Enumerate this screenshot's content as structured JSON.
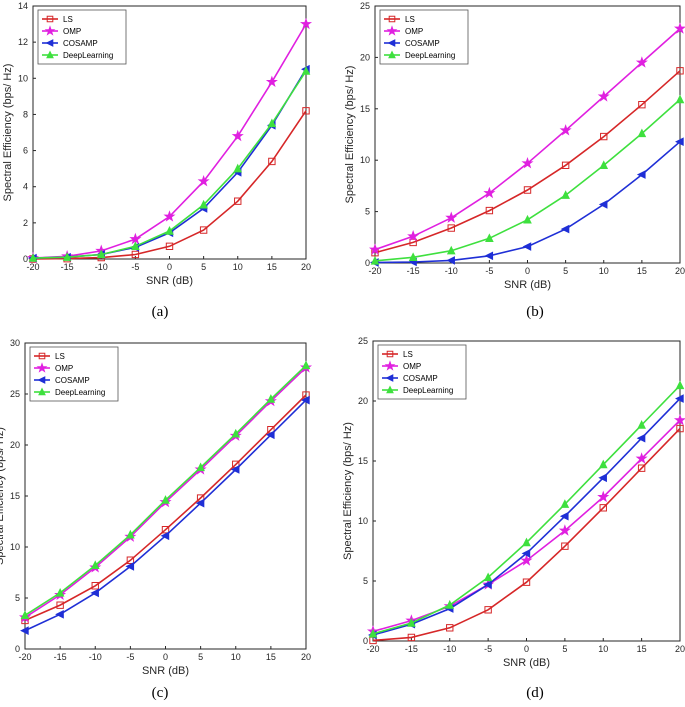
{
  "chart_data": [
    {
      "type": "line",
      "caption": "(a)",
      "xlabel": "SNR (dB)",
      "ylabel": "Spectral Efficiency (bps/ Hz)",
      "x": [
        -20,
        -15,
        -10,
        -5,
        0,
        5,
        10,
        15,
        20
      ],
      "xlim": [
        -20,
        20
      ],
      "ylim": [
        0,
        14
      ],
      "yticks": [
        0,
        2,
        4,
        6,
        8,
        10,
        12,
        14
      ],
      "legend_position": "top-left",
      "series": [
        {
          "name": "LS",
          "color": "#d62728",
          "marker": "square",
          "values": [
            0.0,
            0.02,
            0.08,
            0.25,
            0.7,
            1.6,
            3.2,
            5.4,
            8.2
          ]
        },
        {
          "name": "OMP",
          "color": "#e020e0",
          "marker": "star",
          "values": [
            0.05,
            0.15,
            0.45,
            1.1,
            2.35,
            4.3,
            6.8,
            9.8,
            13.0
          ]
        },
        {
          "name": "COSAMP",
          "color": "#1f2fd6",
          "marker": "triangle-left",
          "values": [
            0.05,
            0.1,
            0.25,
            0.65,
            1.45,
            2.8,
            4.8,
            7.4,
            10.5
          ]
        },
        {
          "name": "DeepLearning",
          "color": "#3ee03e",
          "marker": "triangle-up",
          "values": [
            0.05,
            0.1,
            0.25,
            0.7,
            1.55,
            3.0,
            5.0,
            7.5,
            10.4
          ]
        }
      ]
    },
    {
      "type": "line",
      "caption": "(b)",
      "xlabel": "SNR (dB)",
      "ylabel": "Spectral Efficiency (bps/ Hz)",
      "x": [
        -20,
        -15,
        -10,
        -5,
        0,
        5,
        10,
        15,
        20
      ],
      "xlim": [
        -20,
        20
      ],
      "ylim": [
        0,
        25
      ],
      "yticks": [
        0,
        5,
        10,
        15,
        20,
        25
      ],
      "legend_position": "top-left",
      "series": [
        {
          "name": "LS",
          "color": "#d62728",
          "marker": "square",
          "values": [
            1.0,
            2.0,
            3.4,
            5.1,
            7.1,
            9.5,
            12.3,
            15.4,
            18.7
          ]
        },
        {
          "name": "OMP",
          "color": "#e020e0",
          "marker": "star",
          "values": [
            1.3,
            2.6,
            4.4,
            6.8,
            9.7,
            12.9,
            16.2,
            19.5,
            22.8
          ]
        },
        {
          "name": "COSAMP",
          "color": "#1f2fd6",
          "marker": "triangle-left",
          "values": [
            0.05,
            0.1,
            0.25,
            0.7,
            1.6,
            3.3,
            5.7,
            8.6,
            11.8
          ]
        },
        {
          "name": "DeepLearning",
          "color": "#3ee03e",
          "marker": "triangle-up",
          "values": [
            0.2,
            0.55,
            1.2,
            2.4,
            4.2,
            6.6,
            9.5,
            12.6,
            15.9
          ]
        }
      ]
    },
    {
      "type": "line",
      "caption": "(c)",
      "xlabel": "SNR (dB)",
      "ylabel": "Spectral Efficiency (bps/ Hz)",
      "x": [
        -20,
        -15,
        -10,
        -5,
        0,
        5,
        10,
        15,
        20
      ],
      "xlim": [
        -20,
        20
      ],
      "ylim": [
        0,
        30
      ],
      "yticks": [
        0,
        5,
        10,
        15,
        20,
        25,
        30
      ],
      "legend_position": "top-left",
      "series": [
        {
          "name": "LS",
          "color": "#d62728",
          "marker": "square",
          "values": [
            2.8,
            4.3,
            6.2,
            8.7,
            11.7,
            14.8,
            18.1,
            21.5,
            24.9
          ]
        },
        {
          "name": "OMP",
          "color": "#e020e0",
          "marker": "star",
          "values": [
            3.1,
            5.3,
            8.0,
            11.0,
            14.4,
            17.6,
            20.9,
            24.3,
            27.6
          ]
        },
        {
          "name": "COSAMP",
          "color": "#1f2fd6",
          "marker": "triangle-left",
          "values": [
            1.8,
            3.4,
            5.5,
            8.1,
            11.1,
            14.3,
            17.6,
            21.0,
            24.4
          ]
        },
        {
          "name": "DeepLearning",
          "color": "#3ee03e",
          "marker": "triangle-up",
          "values": [
            3.3,
            5.5,
            8.2,
            11.2,
            14.6,
            17.8,
            21.1,
            24.5,
            27.8
          ]
        }
      ]
    },
    {
      "type": "line",
      "caption": "(d)",
      "xlabel": "SNR (dB)",
      "ylabel": "Spectral Efficiency (bps/ Hz)",
      "x": [
        -20,
        -15,
        -10,
        -5,
        0,
        5,
        10,
        15,
        20
      ],
      "xlim": [
        -20,
        20
      ],
      "ylim": [
        0,
        25
      ],
      "yticks": [
        0,
        5,
        10,
        15,
        20,
        25
      ],
      "legend_position": "top-left",
      "series": [
        {
          "name": "LS",
          "color": "#d62728",
          "marker": "square",
          "values": [
            0.05,
            0.3,
            1.1,
            2.6,
            4.9,
            7.9,
            11.1,
            14.4,
            17.7
          ]
        },
        {
          "name": "OMP",
          "color": "#e020e0",
          "marker": "star",
          "values": [
            0.8,
            1.7,
            2.9,
            4.7,
            6.7,
            9.2,
            12.0,
            15.2,
            18.4
          ]
        },
        {
          "name": "COSAMP",
          "color": "#1f2fd6",
          "marker": "triangle-left",
          "values": [
            0.5,
            1.4,
            2.7,
            4.7,
            7.3,
            10.4,
            13.6,
            16.9,
            20.2
          ]
        },
        {
          "name": "DeepLearning",
          "color": "#3ee03e",
          "marker": "triangle-up",
          "values": [
            0.6,
            1.5,
            3.0,
            5.3,
            8.2,
            11.4,
            14.7,
            18.0,
            21.3
          ]
        }
      ]
    }
  ]
}
